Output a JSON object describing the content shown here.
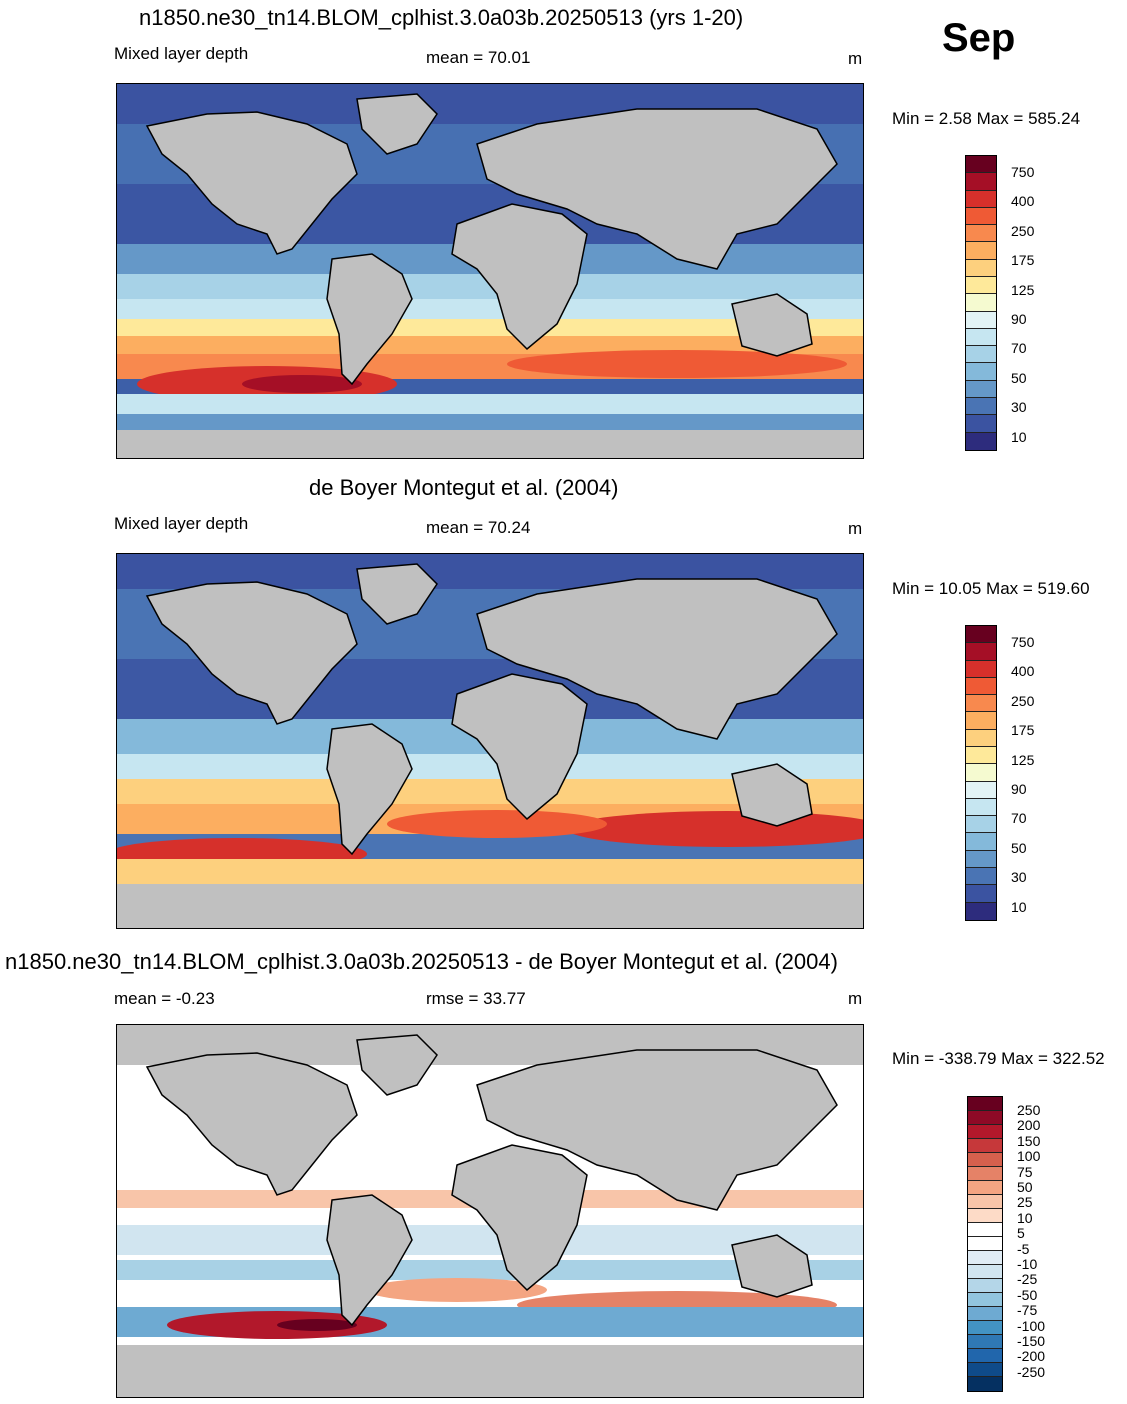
{
  "month": "Sep",
  "units": "m",
  "panels": [
    {
      "title": "n1850.ne30_tn14.BLOM_cplhist.3.0a03b.20250513 (yrs 1-20)",
      "variable": "Mixed layer depth",
      "stat": "mean =  70.01",
      "minmax": "Min =   2.58 Max = 585.24",
      "colorbar": {
        "labels": [
          "750",
          "400",
          "250",
          "175",
          "125",
          "90",
          "70",
          "50",
          "30",
          "10"
        ],
        "colors": [
          "#67001f",
          "#a50f26",
          "#d6302b",
          "#ef5a35",
          "#f8894e",
          "#fcae60",
          "#fdd07e",
          "#fee99a",
          "#f5fad0",
          "#e2f3f5",
          "#c6e6f1",
          "#a7d2e7",
          "#84b9da",
          "#6598c8",
          "#4a74b4",
          "#3b53a1",
          "#2d2c7d"
        ]
      },
      "map_kind": "model"
    },
    {
      "title": "de Boyer Montegut et al. (2004)",
      "variable": "Mixed layer depth",
      "stat": "mean =  70.24",
      "minmax": "Min =  10.05 Max = 519.60",
      "colorbar": {
        "labels": [
          "750",
          "400",
          "250",
          "175",
          "125",
          "90",
          "70",
          "50",
          "30",
          "10"
        ],
        "colors": [
          "#67001f",
          "#a50f26",
          "#d6302b",
          "#ef5a35",
          "#f8894e",
          "#fcae60",
          "#fdd07e",
          "#fee99a",
          "#f5fad0",
          "#e2f3f5",
          "#c6e6f1",
          "#a7d2e7",
          "#84b9da",
          "#6598c8",
          "#4a74b4",
          "#3b53a1",
          "#2d2c7d"
        ]
      },
      "map_kind": "obs"
    },
    {
      "title": "n1850.ne30_tn14.BLOM_cplhist.3.0a03b.20250513 - de Boyer Montegut et al. (2004)",
      "variable": "mean =  -0.23",
      "stat": "rmse =  33.77",
      "minmax": "Min = -338.79 Max = 322.52",
      "colorbar": {
        "labels": [
          "250",
          "200",
          "150",
          "100",
          "75",
          "50",
          "25",
          "10",
          "5",
          "-5",
          "-10",
          "-25",
          "-50",
          "-75",
          "-100",
          "-150",
          "-200",
          "-250"
        ],
        "colors": [
          "#67001f",
          "#8e0a26",
          "#b2182b",
          "#c6383a",
          "#d6604d",
          "#e58267",
          "#f4a582",
          "#f8c5a9",
          "#fddbc7",
          "#ffffff",
          "#ffffff",
          "#e0ecf5",
          "#d1e5f0",
          "#b4d6e8",
          "#92c5de",
          "#6eaad2",
          "#4393c3",
          "#2f78b4",
          "#2166ac",
          "#0f4b8a",
          "#053061"
        ]
      },
      "map_kind": "diff"
    }
  ]
}
